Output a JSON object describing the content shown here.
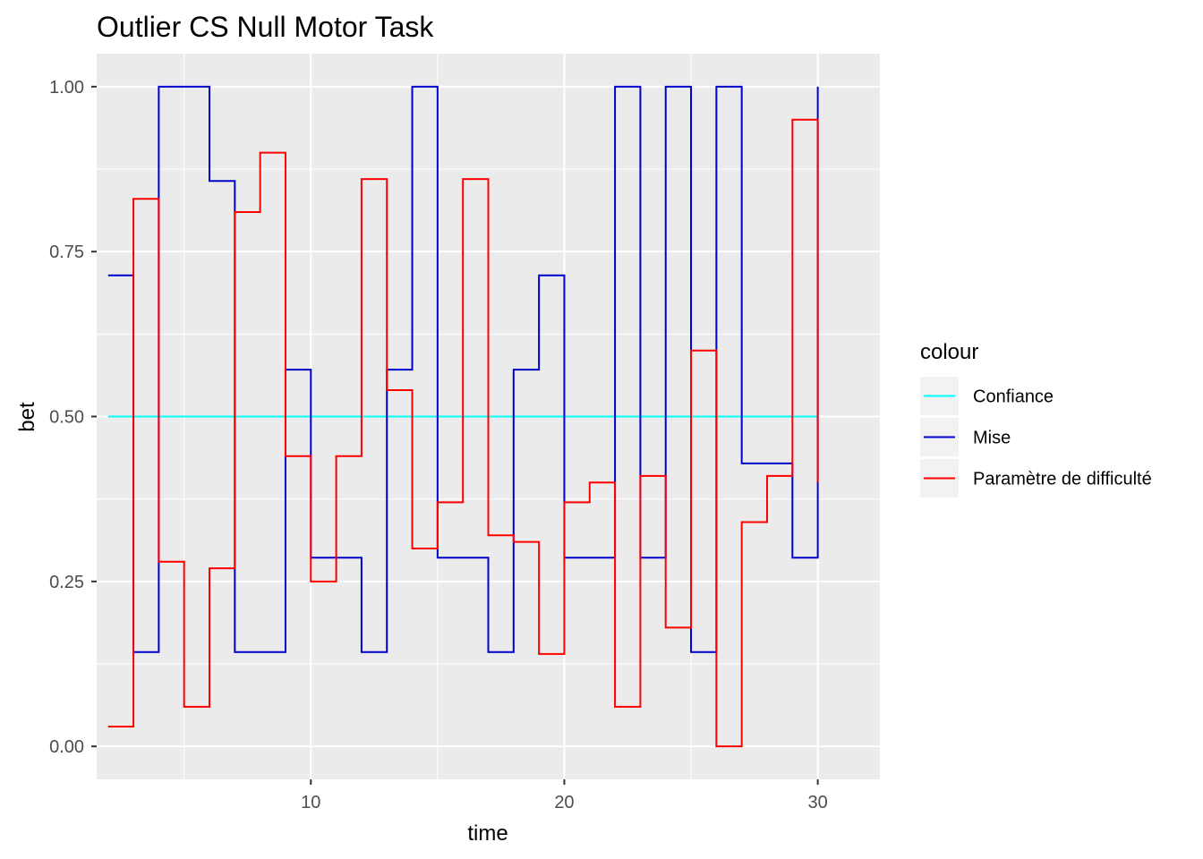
{
  "chart_data": {
    "type": "line",
    "step": "hv",
    "title": "Outlier CS Null Motor Task",
    "xlabel": "time",
    "ylabel": "bet",
    "xlim": [
      1.55,
      32.45
    ],
    "ylim": [
      -0.05,
      1.05
    ],
    "x_ticks": [
      10,
      20,
      30
    ],
    "x_tick_labels": [
      "10",
      "20",
      "30"
    ],
    "y_ticks": [
      0,
      0.25,
      0.5,
      0.75,
      1
    ],
    "y_tick_labels": [
      "0.00",
      "0.25",
      "0.50",
      "0.75",
      "1.00"
    ],
    "grid": true,
    "legend": {
      "title": "colour",
      "position": "right"
    },
    "x": [
      2,
      3,
      4,
      5,
      6,
      7,
      8,
      9,
      10,
      11,
      12,
      13,
      14,
      15,
      16,
      17,
      18,
      19,
      20,
      21,
      22,
      23,
      24,
      25,
      26,
      27,
      28,
      29,
      30
    ],
    "series": [
      {
        "name": "Confiance",
        "color": "#00FFFF",
        "values": [
          0.5,
          0.5,
          0.5,
          0.5,
          0.5,
          0.5,
          0.5,
          0.5,
          0.5,
          0.5,
          0.5,
          0.5,
          0.5,
          0.5,
          0.5,
          0.5,
          0.5,
          0.5,
          0.5,
          0.5,
          0.5,
          0.5,
          0.5,
          0.5,
          0.5,
          0.5,
          0.5,
          0.5,
          0.5
        ]
      },
      {
        "name": "Mise",
        "color": "#0000CD",
        "values": [
          0.714,
          0.143,
          1.0,
          1.0,
          0.857,
          0.143,
          0.143,
          0.571,
          0.286,
          0.286,
          0.143,
          0.571,
          1.0,
          0.286,
          0.286,
          0.143,
          0.571,
          0.714,
          0.286,
          0.286,
          1.0,
          0.286,
          1.0,
          0.143,
          1.0,
          0.429,
          0.429,
          0.286,
          1.0
        ]
      },
      {
        "name": "Paramètre de difficulté",
        "color": "#FF0000",
        "values": [
          0.03,
          0.83,
          0.28,
          0.06,
          0.27,
          0.81,
          0.9,
          0.44,
          0.25,
          0.44,
          0.86,
          0.54,
          0.3,
          0.37,
          0.86,
          0.32,
          0.31,
          0.14,
          0.37,
          0.4,
          0.06,
          0.41,
          0.18,
          0.6,
          0.0,
          0.34,
          0.41,
          0.95,
          0.4
        ]
      }
    ]
  }
}
